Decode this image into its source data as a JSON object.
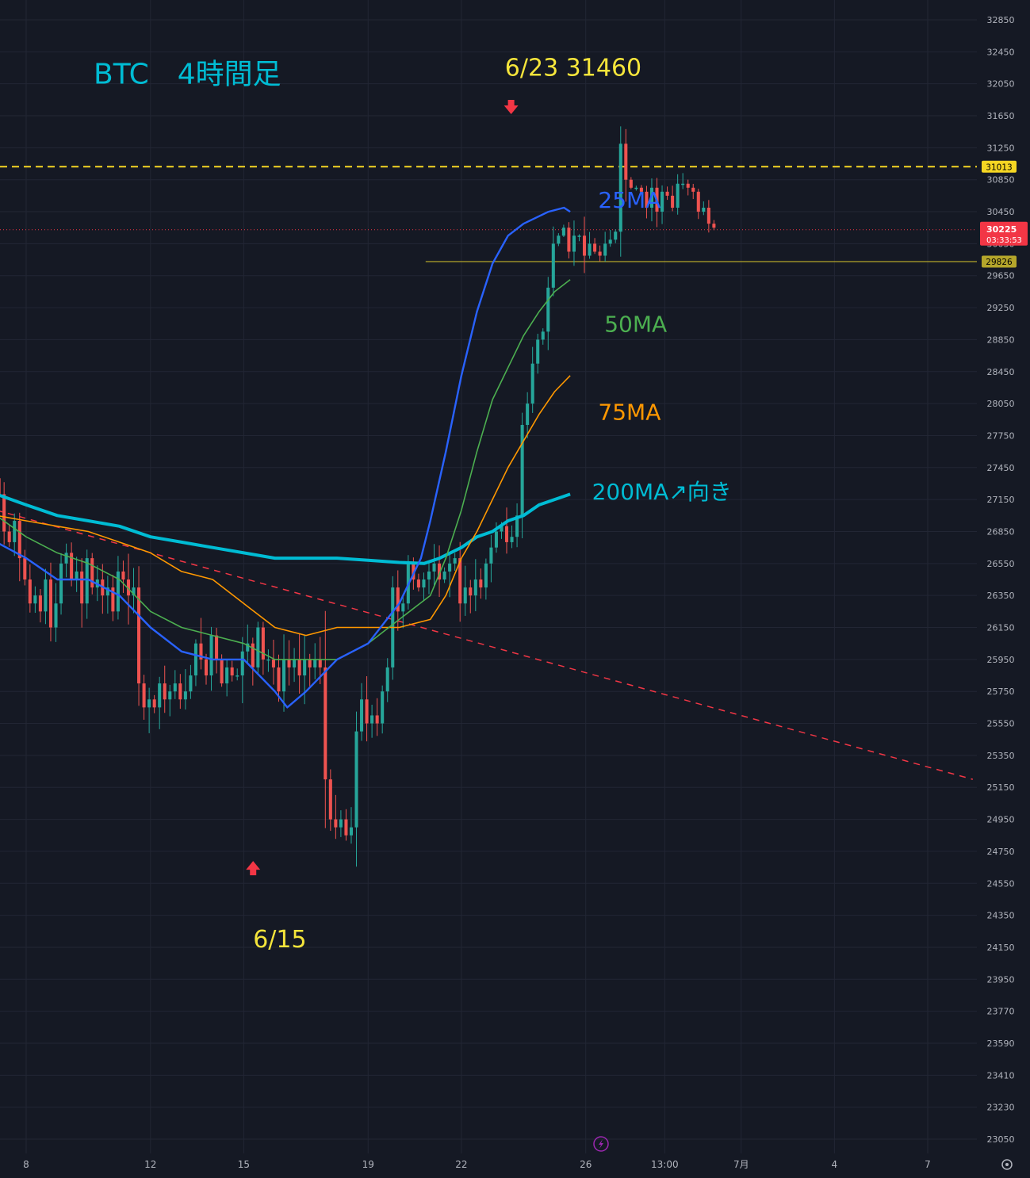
{
  "chart_data": {
    "type": "candlestick",
    "title": "BTC　4時間足",
    "symbol": "BTC",
    "timeframe": "4時間足",
    "colors": {
      "background": "#151924",
      "grid": "#222634",
      "axis_text": "#b2b5be",
      "up": "#26a69a",
      "down": "#ef5350",
      "ma25": "#2962ff",
      "ma50": "#4caf50",
      "ma75": "#ff9800",
      "ma200": "#00bcd4",
      "title": "#00bcd4",
      "annotation": "#f5e53b",
      "marker": "#f23645",
      "resistance": "#f5d623",
      "support": "#b5a62b",
      "trendline": "#f23645",
      "current_price_bg": "#f23645"
    },
    "ylim": [
      23000,
      32950
    ],
    "y_ticks": [
      32850,
      32450,
      32050,
      31650,
      31250,
      30850,
      30450,
      30050,
      29650,
      29250,
      28850,
      28450,
      28050,
      27750,
      27450,
      27150,
      26850,
      26550,
      26350,
      26150,
      25950,
      25750,
      25550,
      25350,
      25150,
      24950,
      24750,
      24550,
      24350,
      24150,
      23950,
      23770,
      23590,
      23410,
      23230,
      23050
    ],
    "x_ticks": [
      {
        "label": "8",
        "day": 8
      },
      {
        "label": "12",
        "day": 12
      },
      {
        "label": "15",
        "day": 15
      },
      {
        "label": "19",
        "day": 19
      },
      {
        "label": "22",
        "day": 22
      },
      {
        "label": "26",
        "day": 26
      },
      {
        "label": "13:00",
        "day": 28.54
      },
      {
        "label": "7月",
        "day": 31
      },
      {
        "label": "4",
        "day": 34
      },
      {
        "label": "7",
        "day": 37
      }
    ],
    "xlim_days": [
      7.04,
      38.45
    ],
    "candles_close": [
      27200,
      26850,
      26750,
      26950,
      26600,
      26450,
      26300,
      26350,
      26250,
      26450,
      26150,
      26300,
      26550,
      26650,
      26450,
      26500,
      26300,
      26600,
      26400,
      26450,
      26350,
      26400,
      26250,
      26500,
      26450,
      26350,
      26400,
      25800,
      25650,
      25700,
      25650,
      25800,
      25700,
      25750,
      25800,
      25700,
      25750,
      25850,
      26050,
      25950,
      25850,
      26100,
      25950,
      25800,
      25900,
      25850,
      25850,
      26000,
      26050,
      25900,
      26150,
      25950,
      25950,
      25900,
      25750,
      25950,
      25900,
      25950,
      25850,
      25950,
      25900,
      25950,
      25900,
      25200,
      24950,
      24900,
      24950,
      24850,
      24900,
      25500,
      25700,
      25550,
      25600,
      25550,
      25750,
      25900,
      26400,
      26250,
      26300,
      26550,
      26450,
      26400,
      26450,
      26500,
      26550,
      26450,
      26500,
      26550,
      26600,
      26300,
      26400,
      26350,
      26450,
      26400,
      26550,
      26700,
      26850,
      26900,
      26750,
      26800,
      27000,
      27850,
      28050,
      28550,
      28850,
      28950,
      29500,
      30050,
      30150,
      30250,
      29950,
      30150,
      30150,
      29900,
      30050,
      29950,
      29900,
      30050,
      30100,
      30200,
      31300,
      30850,
      30750,
      30750,
      30700,
      30500,
      30750,
      30450,
      30700,
      30650,
      30500,
      30800,
      30800,
      30750,
      30700,
      30450,
      30500,
      30300,
      30250
    ],
    "series": [
      {
        "name": "25MA"
      },
      {
        "name": "50MA"
      },
      {
        "name": "75MA"
      },
      {
        "name": "200MA"
      }
    ],
    "ma_lines": {
      "ma25": [
        [
          7.04,
          26750
        ],
        [
          8.0,
          26600
        ],
        [
          9.0,
          26450
        ],
        [
          10.0,
          26450
        ],
        [
          11.0,
          26350
        ],
        [
          12.0,
          26150
        ],
        [
          13.0,
          26000
        ],
        [
          14.0,
          25950
        ],
        [
          15.0,
          25950
        ],
        [
          16.0,
          25750
        ],
        [
          16.4,
          25650
        ],
        [
          17.0,
          25750
        ],
        [
          18.0,
          25950
        ],
        [
          19.0,
          26050
        ],
        [
          20.0,
          26300
        ],
        [
          20.7,
          26600
        ],
        [
          21.0,
          26950
        ],
        [
          21.5,
          27600
        ],
        [
          22.0,
          28400
        ],
        [
          22.5,
          29200
        ],
        [
          23.0,
          29800
        ],
        [
          23.5,
          30150
        ],
        [
          24.0,
          30300
        ],
        [
          24.8,
          30450
        ],
        [
          25.3,
          30500
        ],
        [
          25.5,
          30450
        ]
      ],
      "ma50": [
        [
          7.04,
          27000
        ],
        [
          8.0,
          26800
        ],
        [
          9.0,
          26650
        ],
        [
          10.0,
          26550
        ],
        [
          11.0,
          26450
        ],
        [
          12.0,
          26250
        ],
        [
          13.0,
          26150
        ],
        [
          14.0,
          26100
        ],
        [
          15.0,
          26050
        ],
        [
          16.0,
          25950
        ],
        [
          17.0,
          25950
        ],
        [
          18.0,
          25950
        ],
        [
          19.0,
          26050
        ],
        [
          20.0,
          26200
        ],
        [
          21.0,
          26350
        ],
        [
          21.5,
          26600
        ],
        [
          22.0,
          27050
        ],
        [
          22.5,
          27600
        ],
        [
          23.0,
          28100
        ],
        [
          23.5,
          28500
        ],
        [
          24.0,
          28900
        ],
        [
          24.5,
          29200
        ],
        [
          25.0,
          29450
        ],
        [
          25.5,
          29600
        ]
      ],
      "ma75": [
        [
          7.04,
          27000
        ],
        [
          8.0,
          26950
        ],
        [
          9.0,
          26900
        ],
        [
          10.0,
          26850
        ],
        [
          11.0,
          26750
        ],
        [
          12.0,
          26650
        ],
        [
          13.0,
          26500
        ],
        [
          14.0,
          26450
        ],
        [
          15.0,
          26300
        ],
        [
          16.0,
          26150
        ],
        [
          17.0,
          26100
        ],
        [
          18.0,
          26150
        ],
        [
          19.0,
          26150
        ],
        [
          20.0,
          26150
        ],
        [
          21.0,
          26200
        ],
        [
          21.5,
          26350
        ],
        [
          22.0,
          26600
        ],
        [
          22.5,
          26850
        ],
        [
          23.0,
          27150
        ],
        [
          23.5,
          27450
        ],
        [
          24.0,
          27700
        ],
        [
          24.5,
          27950
        ],
        [
          25.0,
          28200
        ],
        [
          25.5,
          28400
        ]
      ],
      "ma200": [
        [
          7.04,
          27200
        ],
        [
          8.0,
          27100
        ],
        [
          9.0,
          27000
        ],
        [
          10.0,
          26950
        ],
        [
          11.0,
          26900
        ],
        [
          12.0,
          26800
        ],
        [
          13.0,
          26750
        ],
        [
          14.0,
          26700
        ],
        [
          15.0,
          26650
        ],
        [
          16.0,
          26600
        ],
        [
          17.0,
          26600
        ],
        [
          18.0,
          26600
        ],
        [
          19.0,
          26580
        ],
        [
          20.0,
          26560
        ],
        [
          20.8,
          26550
        ],
        [
          21.3,
          26600
        ],
        [
          22.0,
          26700
        ],
        [
          22.5,
          26800
        ],
        [
          23.0,
          26850
        ],
        [
          23.5,
          26950
        ],
        [
          24.0,
          27000
        ],
        [
          24.5,
          27100
        ],
        [
          25.0,
          27150
        ],
        [
          25.5,
          27200
        ]
      ]
    },
    "horizontal_lines": [
      {
        "name": "resistance",
        "price": 31013,
        "label": "31013",
        "style": "dashed"
      },
      {
        "name": "support",
        "price": 29826,
        "label": "29826",
        "style": "solid",
        "start_day": 20.85
      }
    ],
    "trendline": {
      "start": [
        7.04,
        27050
      ],
      "end": [
        38.45,
        25200
      ]
    },
    "current_price": {
      "price": 30225,
      "label": "30225",
      "countdown": "03:33:53"
    },
    "annotations": [
      {
        "name": "label-25ma",
        "text": "25MA",
        "day": 26.4,
        "price": 30500,
        "color": "ma25"
      },
      {
        "name": "label-50ma",
        "text": "50MA",
        "day": 26.6,
        "price": 28950,
        "color": "ma50"
      },
      {
        "name": "label-75ma",
        "text": "75MA",
        "day": 26.4,
        "price": 27900,
        "color": "ma75"
      },
      {
        "name": "label-200ma",
        "text": "200MA↗向き",
        "day": 26.2,
        "price": 27150,
        "color": "ma200"
      },
      {
        "name": "label-high",
        "text": "6/23 31460",
        "day": 23.4,
        "price": 32150,
        "color": "annotation"
      },
      {
        "name": "label-low",
        "text": "6/15",
        "day": 15.3,
        "price": 24150,
        "color": "annotation"
      }
    ],
    "markers": [
      {
        "name": "down-arrow-high",
        "direction": "down",
        "day": 23.6,
        "price": 31750
      },
      {
        "name": "up-arrow-low",
        "direction": "up",
        "day": 15.3,
        "price": 24650
      }
    ]
  }
}
